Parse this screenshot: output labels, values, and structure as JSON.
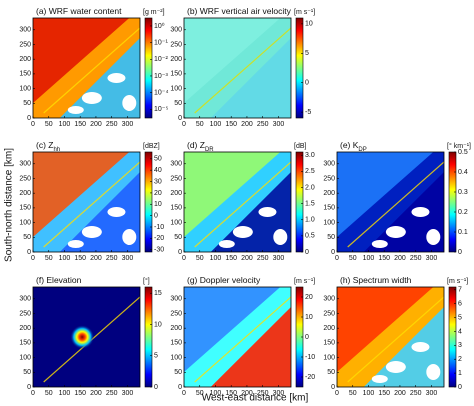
{
  "xlabel": "West-east distance [km]",
  "ylabel": "South-north distance [km]",
  "chart_data": [
    {
      "type": "heatmap",
      "title": "(a) WRF water content",
      "colorbar_label": "[g m⁻²]",
      "colormap": "jet",
      "clog": true,
      "xlim": [
        0,
        340
      ],
      "xticks": [
        0,
        50,
        100,
        150,
        200,
        250,
        300
      ],
      "ylim": [
        0,
        340
      ],
      "yticks": [
        0,
        50,
        100,
        150,
        200,
        250,
        300
      ],
      "clim": [
        3e-06,
        3
      ],
      "cticks": [
        {
          "value": 1,
          "label": "10⁰"
        },
        {
          "value": 0.1,
          "label": "10⁻¹"
        },
        {
          "value": 0.01,
          "label": "10⁻²"
        },
        {
          "value": 0.001,
          "label": "10⁻³"
        },
        {
          "value": 0.0001,
          "label": "10⁻⁴"
        },
        {
          "value": 1e-05,
          "label": "10⁻⁵"
        }
      ]
    },
    {
      "type": "heatmap",
      "title": "(b) WRF vertical air velocity",
      "colorbar_label": "[m s⁻¹]",
      "colormap": "jet",
      "clog": false,
      "xlim": [
        0,
        340
      ],
      "xticks": [
        0,
        50,
        100,
        150,
        200,
        250,
        300
      ],
      "ylim": [
        0,
        340
      ],
      "yticks": [
        0,
        50,
        100,
        150,
        200,
        250,
        300
      ],
      "clim": [
        -6,
        11
      ],
      "cticks": [
        -5,
        0,
        5,
        10
      ]
    },
    {
      "type": "heatmap",
      "title": "(c) Z",
      "title_subscript": "hh",
      "colorbar_label": "[dBZ]",
      "colormap": "jet",
      "clog": false,
      "xlim": [
        0,
        340
      ],
      "xticks": [
        0,
        50,
        100,
        150,
        200,
        250,
        300
      ],
      "ylim": [
        0,
        340
      ],
      "yticks": [
        0,
        50,
        100,
        150,
        200,
        250,
        300
      ],
      "clim": [
        -32,
        56
      ],
      "cticks": [
        -30,
        -20,
        -10,
        0,
        10,
        20,
        30,
        40,
        50
      ]
    },
    {
      "type": "heatmap",
      "title": "(d) Z",
      "title_subscript": "DR",
      "colorbar_label": "[dB]",
      "colormap": "jet",
      "clog": false,
      "xlim": [
        0,
        340
      ],
      "xticks": [
        0,
        50,
        100,
        150,
        200,
        250,
        300
      ],
      "ylim": [
        0,
        340
      ],
      "yticks": [
        0,
        50,
        100,
        150,
        200,
        250,
        300
      ],
      "clim": [
        0,
        3.1
      ],
      "cticks": [
        0,
        {
          "value": 0.5,
          "label": "0.5"
        },
        {
          "value": 1,
          "label": "1.0"
        },
        {
          "value": 1.5,
          "label": "1.5"
        },
        {
          "value": 2,
          "label": "2.0"
        },
        {
          "value": 2.5,
          "label": "2.5"
        },
        {
          "value": 3,
          "label": "3.0"
        }
      ]
    },
    {
      "type": "heatmap",
      "title": "(e) K",
      "title_subscript": "DP",
      "colorbar_label": "[° km⁻¹]",
      "colormap": "jet",
      "clog": false,
      "xlim": [
        0,
        340
      ],
      "xticks": [
        0,
        50,
        100,
        150,
        200,
        250,
        300
      ],
      "ylim": [
        0,
        340
      ],
      "yticks": [
        0,
        50,
        100,
        150,
        200,
        250,
        300
      ],
      "clim": [
        0,
        0.5
      ],
      "cticks": [
        0,
        0.1,
        0.2,
        0.3,
        0.4,
        0.5
      ]
    },
    {
      "type": "heatmap",
      "title": "(f) Elevation",
      "colorbar_label": "[°]",
      "colormap": "jet",
      "clog": false,
      "xlim": [
        0,
        340
      ],
      "xticks": [
        0,
        50,
        100,
        150,
        200,
        250,
        300
      ],
      "ylim": [
        0,
        340
      ],
      "yticks": [
        0,
        50,
        100,
        150,
        200,
        250,
        300
      ],
      "clim": [
        0,
        16
      ],
      "cticks": [
        0,
        5,
        10,
        15
      ]
    },
    {
      "type": "heatmap",
      "title": "(g) Doppler velocity",
      "colorbar_label": "[m s⁻¹]",
      "colormap": "jet",
      "clog": false,
      "xlim": [
        0,
        340
      ],
      "xticks": [
        0,
        50,
        100,
        150,
        200,
        250,
        300
      ],
      "ylim": [
        0,
        340
      ],
      "yticks": [
        0,
        50,
        100,
        150,
        200,
        250,
        300
      ],
      "clim": [
        -25,
        25
      ],
      "cticks": [
        -20,
        -10,
        0,
        10,
        20
      ]
    },
    {
      "type": "heatmap",
      "title": "(h) Spectrum width",
      "colorbar_label": "[m s⁻¹]",
      "colormap": "jet",
      "clog": false,
      "xlim": [
        0,
        340
      ],
      "xticks": [
        0,
        50,
        100,
        150,
        200,
        250,
        300
      ],
      "ylim": [
        0,
        340
      ],
      "yticks": [
        0,
        50,
        100,
        150,
        200,
        250,
        300
      ],
      "clim": [
        0,
        7.2
      ],
      "cticks": [
        0,
        1,
        2,
        3,
        4,
        5,
        6,
        7
      ]
    }
  ]
}
